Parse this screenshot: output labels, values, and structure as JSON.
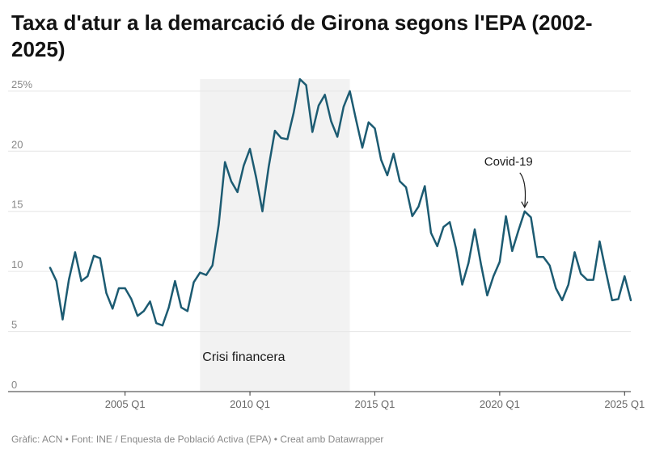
{
  "title": "Taxa d'atur a la demarcació de Girona segons l'EPA (2002-2025)",
  "footer": "Gràfic: ACN • Font: INE / Enquesta de Població Activa (EPA) • Creat amb Datawrapper",
  "colors": {
    "line": "#1c5b72",
    "shade": "#f2f2f2",
    "grid": "#e6e6e6",
    "tick_text": "#888888",
    "annotation": "#1a1a1a"
  },
  "chart_data": {
    "type": "line",
    "title": "Taxa d'atur a la demarcació de Girona segons l'EPA (2002-2025)",
    "xlabel": "",
    "ylabel": "",
    "ylim": [
      0,
      26
    ],
    "xlim": [
      "2002 Q1",
      "2025 Q2"
    ],
    "grid": true,
    "y_ticks": [
      {
        "value": 0,
        "label": "0"
      },
      {
        "value": 5,
        "label": "5"
      },
      {
        "value": 10,
        "label": "10"
      },
      {
        "value": 15,
        "label": "15"
      },
      {
        "value": 20,
        "label": "20"
      },
      {
        "value": 25,
        "label": "25%"
      }
    ],
    "x_ticks": [
      {
        "value": "2005 Q1",
        "label": "2005 Q1"
      },
      {
        "value": "2010 Q1",
        "label": "2010 Q1"
      },
      {
        "value": "2015 Q1",
        "label": "2015 Q1"
      },
      {
        "value": "2020 Q1",
        "label": "2020 Q1"
      },
      {
        "value": "2025 Q1",
        "label": "2025 Q1"
      }
    ],
    "shaded_period": {
      "start": "2008 Q1",
      "end": "2014 Q1",
      "label": "Crisi financera"
    },
    "annotations": [
      {
        "x": "2021 Q1",
        "y": 15.0,
        "text": "Covid-19"
      }
    ],
    "series": [
      {
        "x": [
          "2002 Q1",
          "2002 Q2",
          "2002 Q3",
          "2002 Q4",
          "2003 Q1",
          "2003 Q2",
          "2003 Q3",
          "2003 Q4",
          "2004 Q1",
          "2004 Q2",
          "2004 Q3",
          "2004 Q4",
          "2005 Q1",
          "2005 Q2",
          "2005 Q3",
          "2005 Q4",
          "2006 Q1",
          "2006 Q2",
          "2006 Q3",
          "2006 Q4",
          "2007 Q1",
          "2007 Q2",
          "2007 Q3",
          "2007 Q4",
          "2008 Q1",
          "2008 Q2",
          "2008 Q3",
          "2008 Q4",
          "2009 Q1",
          "2009 Q2",
          "2009 Q3",
          "2009 Q4",
          "2010 Q1",
          "2010 Q2",
          "2010 Q3",
          "2010 Q4",
          "2011 Q1",
          "2011 Q2",
          "2011 Q3",
          "2011 Q4",
          "2012 Q1",
          "2012 Q2",
          "2012 Q3",
          "2012 Q4",
          "2013 Q1",
          "2013 Q2",
          "2013 Q3",
          "2013 Q4",
          "2014 Q1",
          "2014 Q2",
          "2014 Q3",
          "2014 Q4",
          "2015 Q1",
          "2015 Q2",
          "2015 Q3",
          "2015 Q4",
          "2016 Q1",
          "2016 Q2",
          "2016 Q3",
          "2016 Q4",
          "2017 Q1",
          "2017 Q2",
          "2017 Q3",
          "2017 Q4",
          "2018 Q1",
          "2018 Q2",
          "2018 Q3",
          "2018 Q4",
          "2019 Q1",
          "2019 Q2",
          "2019 Q3",
          "2019 Q4",
          "2020 Q1",
          "2020 Q2",
          "2020 Q3",
          "2020 Q4",
          "2021 Q1",
          "2021 Q2",
          "2021 Q3",
          "2021 Q4",
          "2022 Q1",
          "2022 Q2",
          "2022 Q3",
          "2022 Q4",
          "2023 Q1",
          "2023 Q2",
          "2023 Q3",
          "2023 Q4",
          "2024 Q1",
          "2024 Q2",
          "2024 Q3",
          "2024 Q4",
          "2025 Q1",
          "2025 Q2"
        ],
        "values": [
          10.3,
          9.2,
          6.0,
          9.3,
          11.6,
          9.2,
          9.6,
          11.3,
          11.1,
          8.2,
          6.9,
          8.6,
          8.6,
          7.7,
          6.3,
          6.7,
          7.5,
          5.7,
          5.5,
          7.0,
          9.2,
          7.0,
          6.7,
          9.1,
          9.9,
          9.7,
          10.5,
          13.9,
          19.1,
          17.5,
          16.6,
          18.8,
          20.2,
          17.8,
          15.0,
          18.7,
          21.7,
          21.1,
          21.0,
          23.2,
          26.0,
          25.5,
          21.6,
          23.8,
          24.7,
          22.5,
          21.2,
          23.7,
          25.0,
          22.6,
          20.3,
          22.4,
          21.9,
          19.3,
          18.0,
          19.8,
          17.5,
          17.0,
          14.6,
          15.4,
          17.1,
          13.2,
          12.1,
          13.7,
          14.1,
          11.9,
          8.9,
          10.7,
          13.5,
          10.6,
          8.0,
          9.6,
          10.8,
          14.6,
          11.7,
          13.4,
          15.0,
          14.5,
          11.2,
          11.2,
          10.5,
          8.6,
          7.6,
          8.9,
          11.6,
          9.8,
          9.3,
          9.3,
          12.5,
          10.0,
          7.6,
          7.7,
          9.6,
          7.6
        ]
      }
    ]
  }
}
